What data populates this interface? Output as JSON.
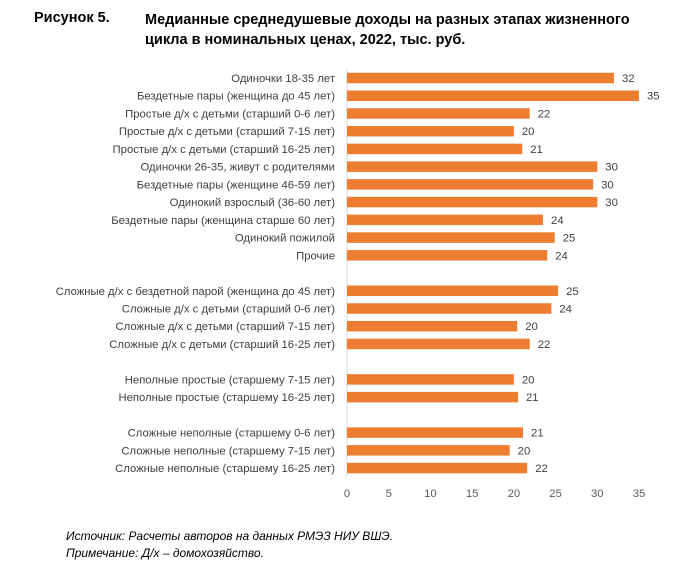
{
  "figure_label": "Рисунок 5.",
  "chart_data": {
    "type": "bar",
    "orientation": "horizontal",
    "title": "Медианные среднедушевые доходы на разных этапах жизненного цикла в номинальных ценах, 2022, тыс. руб.",
    "categories": [
      "Одиночки 18-35 лет",
      "Бездетные пары (женщина до 45 лет)",
      "Простые д/х с детьми (старший 0-6 лет)",
      "Простые д/х с детьми  (старший 7-15 лет)",
      "Простые д/х с детьми  (старший 16-25 лет)",
      "Одиночки 26-35, живут с родителями",
      "Бездетные пары (женщине 46-59 лет)",
      "Одинокий взрослый (36-60 лет)",
      "Бездетные пары (женщина старше 60 лет)",
      "Одинокий пожилой",
      "Прочие",
      "",
      "Сложные д/х с бездетной парой (женщина до 45 лет)",
      "Сложные д/х с детьми (старший 0-6 лет)",
      "Сложные д/х с детьми (старший 7-15 лет)",
      "Сложные д/х с детьми (старший 16-25 лет)",
      "",
      "Неполные простые (старшему 7-15 лет)",
      "Неполные простые (старшему 16-25 лет)",
      "",
      "Сложные неполные (старшему 0-6 лет)",
      "Сложные неполные (старшему 7-15 лет)",
      "Сложные неполные (старшему 16-25 лет)"
    ],
    "values": [
      32.0,
      35.0,
      21.9,
      20.0,
      21.0,
      30.0,
      29.5,
      30.0,
      23.5,
      24.9,
      24.0,
      null,
      25.3,
      24.5,
      20.4,
      21.9,
      null,
      20.0,
      20.5,
      null,
      21.1,
      19.5,
      21.6
    ],
    "data_labels": [
      "32",
      "35",
      "22",
      "20",
      "21",
      "30",
      "30",
      "30",
      "24",
      "25",
      "24",
      "",
      "25",
      "24",
      "20",
      "22",
      "",
      "20",
      "21",
      "",
      "21",
      "20",
      "22"
    ],
    "xlim": [
      0,
      35
    ],
    "xticks": [
      "0",
      "5",
      "10",
      "15",
      "20",
      "25",
      "30",
      "35"
    ],
    "bar_color": "#ED7D31",
    "grid": false,
    "legend": "none"
  },
  "footnotes": {
    "source": "Источник: Расчеты авторов на данных РМЭЗ НИУ ВШЭ.",
    "note": "Примечание: Д/х – домохозяйство."
  }
}
